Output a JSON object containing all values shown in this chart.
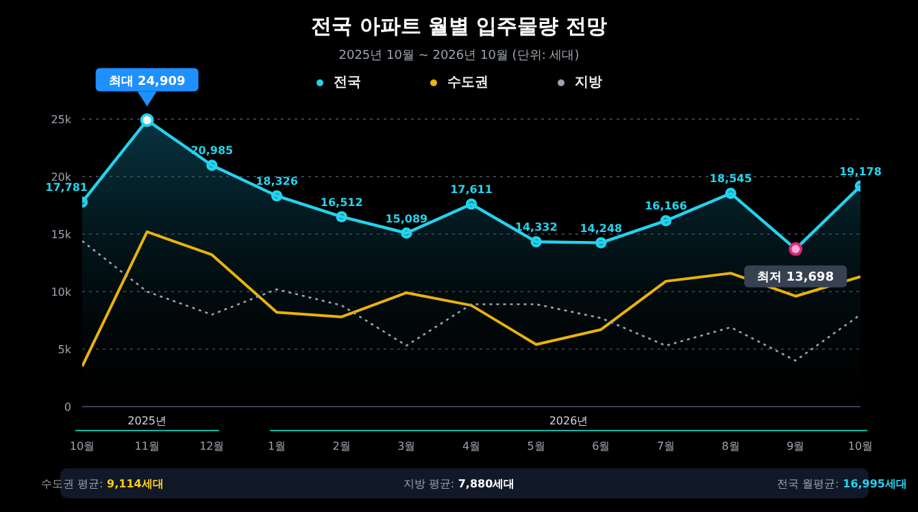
{
  "chart_data": {
    "type": "line",
    "title": "전국 아파트 월별 입주물량 전망",
    "subtitle": "2025년 10월 ~ 2026년 10월 (단위: 세대)",
    "categories": [
      "10월",
      "11월",
      "12월",
      "1월",
      "2월",
      "3월",
      "4월",
      "5월",
      "6월",
      "7월",
      "8월",
      "9월",
      "10월"
    ],
    "series": [
      {
        "name": "전국",
        "type": "area",
        "color": "#22d3ee",
        "marker": "circle",
        "line_style": "solid",
        "values": [
          17781,
          24909,
          20985,
          18326,
          16512,
          15089,
          17611,
          14332,
          14248,
          16166,
          18545,
          13698,
          19178
        ],
        "value_labels": [
          "17,781",
          null,
          "20,985",
          "18,326",
          "16,512",
          "15,089",
          "17,611",
          "14,332",
          "14,248",
          "16,166",
          "18,545",
          null,
          "19,178"
        ]
      },
      {
        "name": "수도권",
        "color": "#eab308",
        "marker": "none",
        "line_style": "solid",
        "values": [
          3500,
          15200,
          13200,
          8200,
          7800,
          9900,
          8800,
          5400,
          6700,
          10900,
          11600,
          9600,
          11300
        ]
      },
      {
        "name": "지방",
        "color": "#9ca3af",
        "marker": "none",
        "line_style": "dotted",
        "values": [
          14400,
          10000,
          8000,
          10200,
          8800,
          5300,
          8900,
          8900,
          7700,
          5300,
          6900,
          4000,
          8000
        ]
      }
    ],
    "ylim": [
      0,
      25000
    ],
    "yticks": [
      0,
      {
        "value": 5000,
        "label": "5k"
      },
      {
        "value": 10000,
        "label": "10k"
      },
      {
        "value": 15000,
        "label": "15k"
      },
      {
        "value": 20000,
        "label": "20k"
      },
      {
        "value": 25000,
        "label": "25k"
      }
    ],
    "grid": "y",
    "legend": "top",
    "annotations": [
      {
        "text": "최대 24,909",
        "x": "11월",
        "y": 24909
      },
      {
        "text": "최저 13,698",
        "x": "9월",
        "y": 13698
      },
      "2025년",
      "2026년",
      "수도권 평균: 9,114세대",
      "지방 평균: 7,880세대",
      "전국 월평균: 16,995세대"
    ]
  }
}
